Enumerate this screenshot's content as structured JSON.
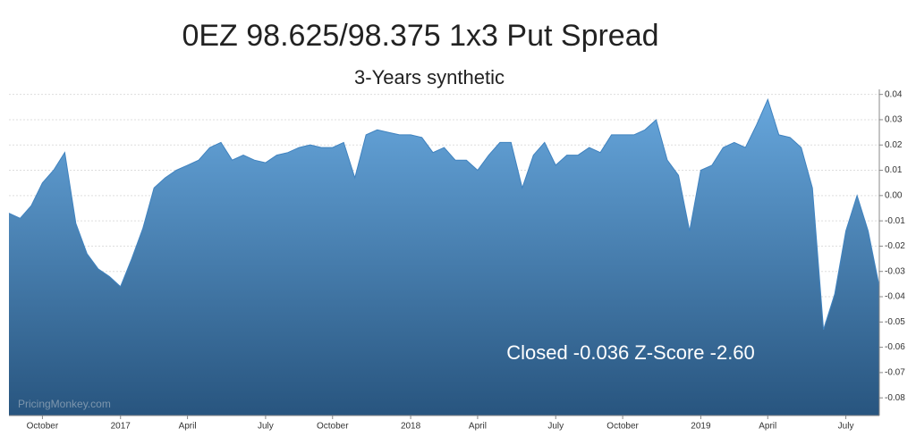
{
  "chart_data": {
    "type": "area",
    "title": "0EZ 98.625/98.375 1x3 Put Spread",
    "subtitle": "3-Years synthetic",
    "annotation": "Closed -0.036 Z-Score -2.60",
    "watermark": "PricingMonkey.com",
    "color": "#3f82bf",
    "grid": true,
    "categories": [
      null,
      null,
      null,
      "October",
      null,
      null,
      null,
      null,
      null,
      null,
      "2017",
      null,
      null,
      null,
      null,
      null,
      "April",
      null,
      null,
      null,
      null,
      null,
      null,
      "July",
      null,
      null,
      null,
      null,
      null,
      "October",
      null,
      null,
      null,
      null,
      null,
      null,
      "2018",
      null,
      null,
      null,
      null,
      null,
      "April",
      null,
      null,
      null,
      null,
      null,
      null,
      "July",
      null,
      null,
      null,
      null,
      null,
      "October",
      null,
      null,
      null,
      null,
      null,
      null,
      "2019",
      null,
      null,
      null,
      null,
      null,
      "April",
      null,
      null,
      null,
      null,
      null,
      null,
      "July",
      null,
      null,
      null
    ],
    "values": [
      -0.007,
      -0.009,
      -0.004,
      0.005,
      0.01,
      0.017,
      -0.011,
      -0.023,
      -0.029,
      -0.032,
      -0.036,
      -0.025,
      -0.013,
      0.003,
      0.007,
      0.01,
      0.012,
      0.014,
      0.019,
      0.021,
      0.014,
      0.016,
      0.014,
      0.013,
      0.016,
      0.017,
      0.019,
      0.02,
      0.019,
      0.019,
      0.021,
      0.007,
      0.024,
      0.026,
      0.025,
      0.024,
      0.024,
      0.023,
      0.017,
      0.019,
      0.014,
      0.014,
      0.01,
      0.016,
      0.021,
      0.021,
      0.003,
      0.016,
      0.021,
      0.012,
      0.016,
      0.016,
      0.019,
      0.017,
      0.024,
      0.024,
      0.024,
      0.026,
      0.03,
      0.014,
      0.008,
      -0.014,
      0.01,
      0.012,
      0.019,
      0.021,
      0.019,
      0.028,
      0.038,
      0.024,
      0.023,
      0.019,
      0.003,
      -0.053,
      -0.039,
      -0.014,
      0.0,
      -0.014,
      -0.036
    ],
    "ylim": [
      -0.087,
      0.042
    ],
    "yticks": [
      0.04,
      0.03,
      0.02,
      0.01,
      {
        "value": 0,
        "label": "0.00"
      },
      -0.01,
      -0.02,
      -0.03,
      -0.04,
      -0.05,
      -0.06,
      -0.07,
      -0.08
    ]
  }
}
